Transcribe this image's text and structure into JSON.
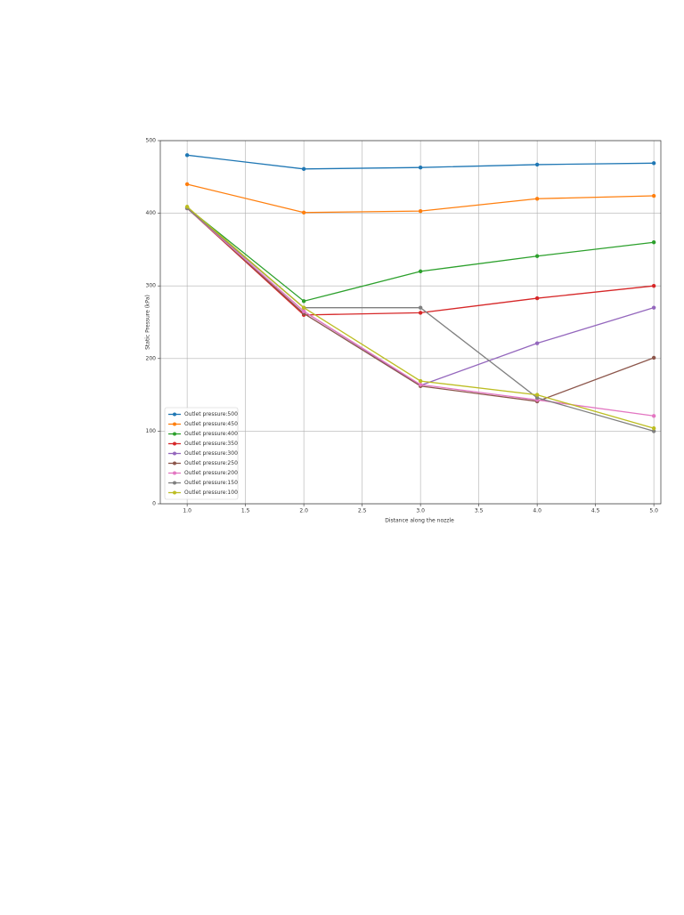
{
  "chart_data": {
    "type": "line",
    "x_label": "Distance along the nozzle",
    "y_label": "Static Pressure (kPa)",
    "x": [
      1.0,
      2.0,
      3.0,
      4.0,
      5.0
    ],
    "xlim": [
      0.77,
      5.06
    ],
    "xticks": [
      {
        "value": 1.0,
        "label": "1.0"
      },
      1.5,
      {
        "value": 2.0,
        "label": "2.0"
      },
      2.5,
      {
        "value": 3.0,
        "label": "3.0"
      },
      3.5,
      {
        "value": 4.0,
        "label": "4.0"
      },
      4.5,
      {
        "value": 5.0,
        "label": "5.0"
      }
    ],
    "ylim": [
      0,
      500
    ],
    "yticks": [
      0,
      100,
      200,
      300,
      400,
      500
    ],
    "grid": true,
    "legend": "lower left",
    "series": [
      {
        "name": "Outlet pressure:500",
        "color": "#1f77b4",
        "values": [
          480,
          461,
          463,
          467,
          469
        ]
      },
      {
        "name": "Outlet pressure:450",
        "color": "#ff7f0e",
        "values": [
          440,
          401,
          403,
          420,
          424
        ]
      },
      {
        "name": "Outlet pressure:400",
        "color": "#2ca02c",
        "values": [
          408,
          279,
          320,
          341,
          360
        ]
      },
      {
        "name": "Outlet pressure:350",
        "color": "#d62728",
        "values": [
          407,
          260,
          263,
          283,
          300
        ]
      },
      {
        "name": "Outlet pressure:300",
        "color": "#9467bd",
        "values": [
          407,
          265,
          163,
          221,
          270
        ]
      },
      {
        "name": "Outlet pressure:250",
        "color": "#8c564b",
        "values": [
          407,
          262,
          162,
          141,
          201
        ]
      },
      {
        "name": "Outlet pressure:200",
        "color": "#e377c2",
        "values": [
          407,
          265,
          164,
          143,
          121
        ]
      },
      {
        "name": "Outlet pressure:150",
        "color": "#7f7f7f",
        "values": [
          407,
          270,
          270,
          146,
          100
        ]
      },
      {
        "name": "Outlet pressure:100",
        "color": "#bcbd22",
        "values": [
          409,
          270,
          169,
          150,
          104
        ]
      }
    ]
  }
}
